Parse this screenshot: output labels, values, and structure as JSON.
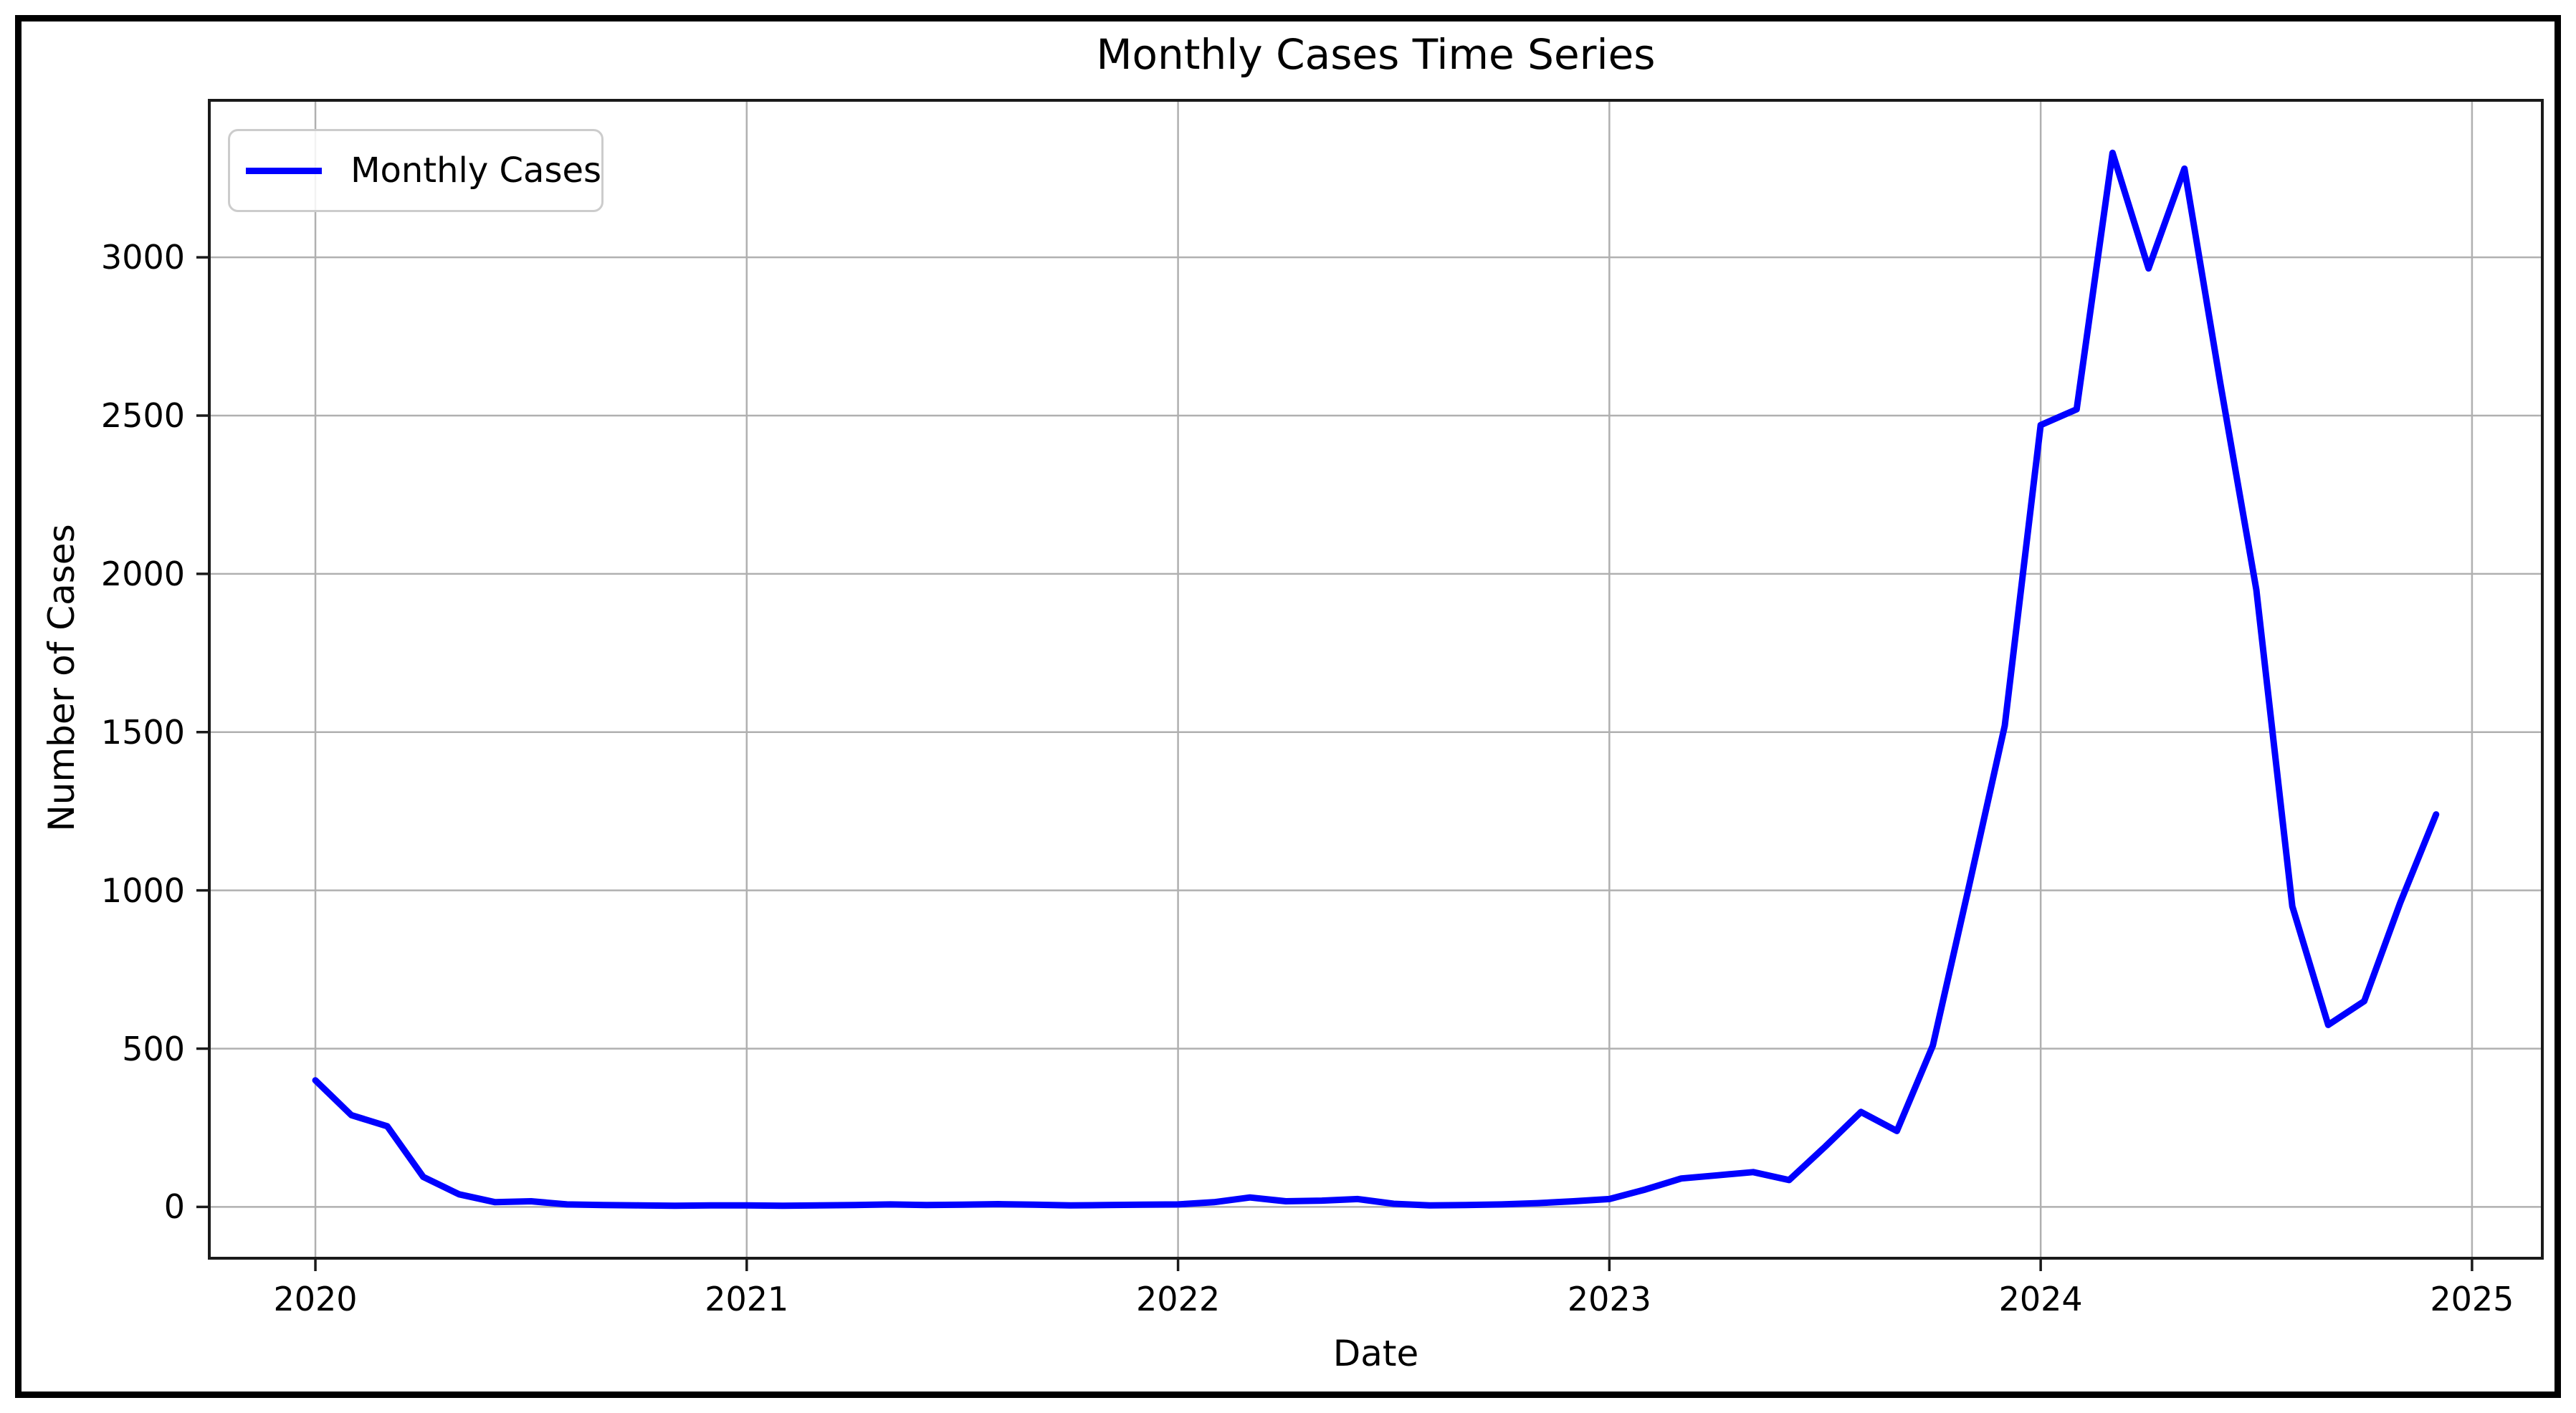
{
  "window": {
    "background": "#ffffff",
    "frame_color": "#000000"
  },
  "chart_data": {
    "type": "line",
    "title": "Monthly Cases Time Series",
    "xlabel": "Date",
    "ylabel": "Number of Cases",
    "grid": true,
    "grid_color": "#b0b0b0",
    "axis_color": "#1a1a1a",
    "legend_position": "upper left",
    "x_ticks": [
      2020,
      2021,
      2022,
      2023,
      2024,
      2025
    ],
    "y_ticks": [
      0,
      500,
      1000,
      1500,
      2000,
      2500,
      3000
    ],
    "xlim_years": [
      2019.754,
      2025.163
    ],
    "ylim": [
      -162,
      3496
    ],
    "series": [
      {
        "name": "Monthly Cases",
        "color": "#0000ff",
        "x": [
          "2020-01",
          "2020-02",
          "2020-03",
          "2020-04",
          "2020-05",
          "2020-06",
          "2020-07",
          "2020-08",
          "2020-09",
          "2020-10",
          "2020-11",
          "2020-12",
          "2021-01",
          "2021-02",
          "2021-03",
          "2021-04",
          "2021-05",
          "2021-06",
          "2021-07",
          "2021-08",
          "2021-09",
          "2021-10",
          "2021-11",
          "2021-12",
          "2022-01",
          "2022-02",
          "2022-03",
          "2022-04",
          "2022-05",
          "2022-06",
          "2022-07",
          "2022-08",
          "2022-09",
          "2022-10",
          "2022-11",
          "2022-12",
          "2023-01",
          "2023-02",
          "2023-03",
          "2023-04",
          "2023-05",
          "2023-06",
          "2023-07",
          "2023-08",
          "2023-09",
          "2023-10",
          "2023-11",
          "2023-12",
          "2024-01",
          "2024-02",
          "2024-03",
          "2024-04",
          "2024-05",
          "2024-06",
          "2024-07",
          "2024-08",
          "2024-09",
          "2024-10",
          "2024-11",
          "2024-12"
        ],
        "values": [
          400,
          290,
          255,
          95,
          40,
          15,
          18,
          8,
          6,
          5,
          4,
          5,
          5,
          4,
          5,
          6,
          8,
          6,
          7,
          9,
          7,
          5,
          6,
          7,
          8,
          15,
          30,
          18,
          20,
          25,
          10,
          5,
          6,
          8,
          12,
          18,
          25,
          55,
          90,
          100,
          110,
          85,
          190,
          300,
          240,
          510,
          1010,
          1520,
          2470,
          2520,
          3330,
          2965,
          3280,
          2600,
          1950,
          950,
          575,
          650,
          960,
          1240
        ]
      }
    ]
  }
}
